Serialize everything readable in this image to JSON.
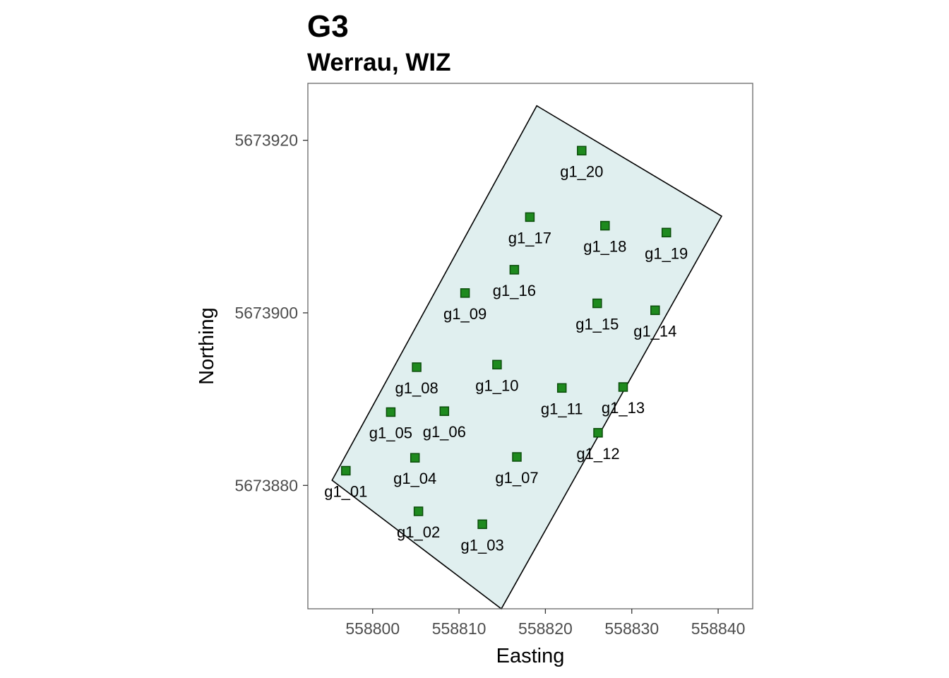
{
  "chart_data": {
    "type": "scatter",
    "title": "G3",
    "subtitle": "Werrau, WIZ",
    "xlabel": "Easting",
    "ylabel": "Northing",
    "xlim": [
      558792.5,
      558844
    ],
    "ylim": [
      5673865.7,
      5673926.6
    ],
    "x_ticks": [
      558800,
      558810,
      558820,
      558830,
      558840
    ],
    "y_ticks": [
      5673880,
      5673900,
      5673920
    ],
    "grid": false,
    "colors": {
      "polygon_fill": "#e0efef",
      "polygon_stroke": "#000000",
      "point_fill": "#1e8a1e",
      "point_stroke": "#0b4d0b",
      "panel_border": "#666666"
    },
    "polygon": [
      {
        "x": 558795.3,
        "y": 5673880.6
      },
      {
        "x": 558819.0,
        "y": 5673924.0
      },
      {
        "x": 558840.4,
        "y": 5673911.2
      },
      {
        "x": 558814.9,
        "y": 5673865.7
      }
    ],
    "points": [
      {
        "label": "g1_01",
        "x": 558796.9,
        "y": 5673881.7
      },
      {
        "label": "g1_02",
        "x": 558805.3,
        "y": 5673877.0
      },
      {
        "label": "g1_03",
        "x": 558812.7,
        "y": 5673875.5
      },
      {
        "label": "g1_04",
        "x": 558804.9,
        "y": 5673883.2
      },
      {
        "label": "g1_05",
        "x": 558802.1,
        "y": 5673888.5
      },
      {
        "label": "g1_06",
        "x": 558808.3,
        "y": 5673888.6
      },
      {
        "label": "g1_07",
        "x": 558816.7,
        "y": 5673883.3
      },
      {
        "label": "g1_08",
        "x": 558805.1,
        "y": 5673893.7
      },
      {
        "label": "g1_09",
        "x": 558810.7,
        "y": 5673902.3
      },
      {
        "label": "g1_10",
        "x": 558814.4,
        "y": 5673894.0
      },
      {
        "label": "g1_11",
        "x": 558821.9,
        "y": 5673891.3
      },
      {
        "label": "g1_12",
        "x": 558826.1,
        "y": 5673886.1
      },
      {
        "label": "g1_13",
        "x": 558829.0,
        "y": 5673891.4
      },
      {
        "label": "g1_14",
        "x": 558832.7,
        "y": 5673900.3
      },
      {
        "label": "g1_15",
        "x": 558826.0,
        "y": 5673901.1
      },
      {
        "label": "g1_16",
        "x": 558816.4,
        "y": 5673905.0
      },
      {
        "label": "g1_17",
        "x": 558818.2,
        "y": 5673911.1
      },
      {
        "label": "g1_18",
        "x": 558826.9,
        "y": 5673910.1
      },
      {
        "label": "g1_19",
        "x": 558834.0,
        "y": 5673909.3
      },
      {
        "label": "g1_20",
        "x": 558824.2,
        "y": 5673918.8
      }
    ]
  }
}
